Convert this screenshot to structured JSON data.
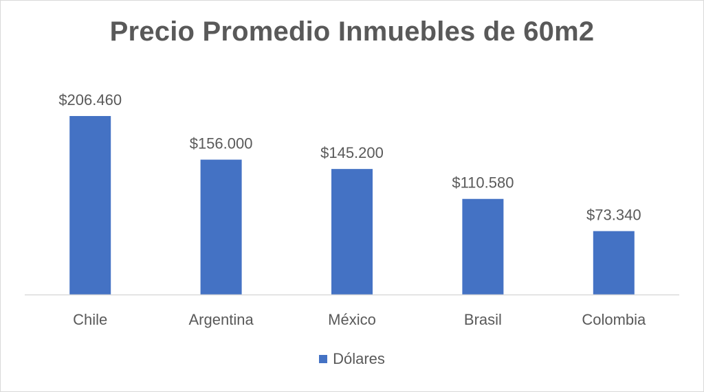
{
  "chart_data": {
    "type": "bar",
    "title": "Precio Promedio Inmuebles de 60m2",
    "categories": [
      "Chile",
      "Argentina",
      "México",
      "Brasil",
      "Colombia"
    ],
    "series": [
      {
        "name": "Dólares",
        "values": [
          206460,
          156000,
          145200,
          110580,
          73340
        ],
        "data_labels": [
          "$206.460",
          "$156.000",
          "$145.200",
          "$110.580",
          "$73.340"
        ]
      }
    ],
    "ylim": [
      0,
      240000
    ],
    "grid": false,
    "legend_position": "bottom",
    "colors": {
      "bar": "#4472c4",
      "axis": "#d9d9d9",
      "text": "#595959",
      "title": "#595959"
    }
  }
}
